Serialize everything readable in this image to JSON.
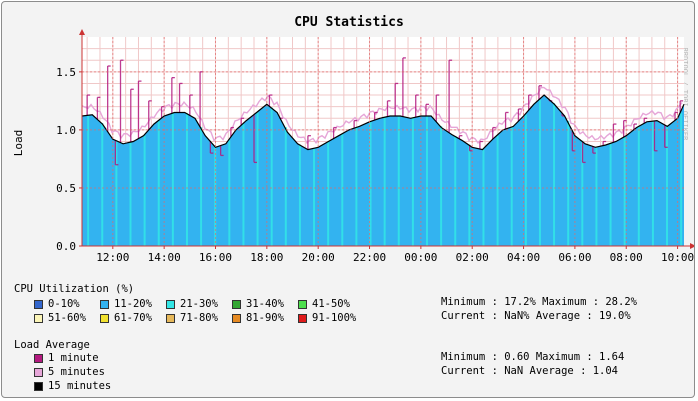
{
  "chart_data": {
    "type": "area",
    "title": "CPU Statistics",
    "ylabel": "Load",
    "ylim": [
      0,
      1.8
    ],
    "yticks": [
      "0.0",
      "0.5",
      "1.0",
      "1.5"
    ],
    "ytick_values": [
      0,
      0.5,
      1.0,
      1.5
    ],
    "x_range_hours": [
      10.8,
      34.25
    ],
    "xticks": [
      "12:00",
      "14:00",
      "16:00",
      "18:00",
      "20:00",
      "22:00",
      "00:00",
      "02:00",
      "04:00",
      "06:00",
      "08:00",
      "10:00"
    ],
    "xtick_values": [
      12,
      14,
      16,
      18,
      20,
      22,
      24,
      26,
      28,
      30,
      32,
      34
    ],
    "watermark": "RRDTOOL / TOBI OETIKER",
    "grid": true,
    "series_15min_hours": [
      10.8,
      11.2,
      11.6,
      12.0,
      12.4,
      12.8,
      13.2,
      13.6,
      14.0,
      14.4,
      14.8,
      15.2,
      15.6,
      16.0,
      16.4,
      16.8,
      17.2,
      17.6,
      18.0,
      18.4,
      18.8,
      19.2,
      19.6,
      20.0,
      20.4,
      20.8,
      21.2,
      21.6,
      22.0,
      22.4,
      22.8,
      23.2,
      23.6,
      24.0,
      24.4,
      24.8,
      25.2,
      25.6,
      26.0,
      26.4,
      26.8,
      27.2,
      27.6,
      28.0,
      28.4,
      28.8,
      29.2,
      29.6,
      30.0,
      30.4,
      30.8,
      31.2,
      31.6,
      32.0,
      32.4,
      32.8,
      33.2,
      33.6,
      34.0,
      34.25
    ],
    "series_15min_load": [
      1.12,
      1.13,
      1.05,
      0.92,
      0.88,
      0.9,
      0.95,
      1.05,
      1.12,
      1.15,
      1.15,
      1.1,
      0.95,
      0.85,
      0.88,
      1.0,
      1.08,
      1.15,
      1.22,
      1.15,
      0.98,
      0.88,
      0.83,
      0.85,
      0.9,
      0.95,
      1.0,
      1.03,
      1.07,
      1.1,
      1.12,
      1.12,
      1.1,
      1.12,
      1.12,
      1.02,
      0.96,
      0.91,
      0.85,
      0.83,
      0.92,
      1.0,
      1.03,
      1.12,
      1.22,
      1.3,
      1.22,
      1.12,
      0.95,
      0.88,
      0.85,
      0.87,
      0.9,
      0.95,
      1.02,
      1.07,
      1.08,
      1.03,
      1.1,
      1.22
    ],
    "spikes_1min": [
      [
        11.0,
        1.3
      ],
      [
        11.4,
        1.28
      ],
      [
        11.8,
        1.55
      ],
      [
        12.1,
        0.7
      ],
      [
        12.3,
        1.6
      ],
      [
        12.7,
        1.35
      ],
      [
        13.0,
        1.42
      ],
      [
        13.4,
        1.25
      ],
      [
        13.9,
        1.2
      ],
      [
        14.3,
        1.45
      ],
      [
        14.6,
        1.4
      ],
      [
        15.0,
        1.3
      ],
      [
        15.4,
        1.5
      ],
      [
        15.8,
        0.8
      ],
      [
        16.2,
        0.78
      ],
      [
        16.6,
        1.02
      ],
      [
        17.0,
        1.1
      ],
      [
        17.5,
        0.72
      ],
      [
        18.1,
        1.3
      ],
      [
        18.5,
        1.1
      ],
      [
        19.6,
        0.95
      ],
      [
        20.6,
        1.02
      ],
      [
        21.4,
        1.08
      ],
      [
        22.2,
        1.15
      ],
      [
        22.7,
        1.25
      ],
      [
        23.0,
        1.4
      ],
      [
        23.3,
        1.62
      ],
      [
        23.8,
        1.3
      ],
      [
        24.2,
        1.22
      ],
      [
        24.6,
        1.3
      ],
      [
        25.1,
        1.6
      ],
      [
        25.5,
        0.95
      ],
      [
        25.9,
        0.82
      ],
      [
        26.3,
        0.9
      ],
      [
        26.8,
        1.02
      ],
      [
        27.3,
        1.15
      ],
      [
        27.8,
        1.18
      ],
      [
        28.2,
        1.3
      ],
      [
        28.6,
        1.38
      ],
      [
        29.0,
        1.25
      ],
      [
        29.5,
        1.12
      ],
      [
        29.9,
        0.82
      ],
      [
        30.3,
        0.72
      ],
      [
        30.7,
        0.8
      ],
      [
        31.1,
        0.9
      ],
      [
        31.5,
        1.05
      ],
      [
        31.9,
        1.08
      ],
      [
        32.3,
        1.05
      ],
      [
        32.7,
        1.1
      ],
      [
        33.1,
        0.82
      ],
      [
        33.5,
        0.85
      ],
      [
        33.9,
        1.15
      ],
      [
        34.1,
        1.25
      ]
    ],
    "legend": {
      "cpu_title": "CPU Utilization (%)",
      "cpu_items": [
        {
          "label": "0-10%",
          "color": "#3366cc"
        },
        {
          "label": "11-20%",
          "color": "#33b3f0"
        },
        {
          "label": "21-30%",
          "color": "#33e6e6"
        },
        {
          "label": "31-40%",
          "color": "#33a633"
        },
        {
          "label": "41-50%",
          "color": "#4ddf4d"
        },
        {
          "label": "51-60%",
          "color": "#fbf5b8"
        },
        {
          "label": "61-70%",
          "color": "#f2e230"
        },
        {
          "label": "71-80%",
          "color": "#e6b85a"
        },
        {
          "label": "81-90%",
          "color": "#e68a22"
        },
        {
          "label": "91-100%",
          "color": "#e01b1b"
        }
      ],
      "load_title": "Load Average",
      "load_items": [
        {
          "label": "1 minute",
          "color": "#b3197f"
        },
        {
          "label": "5 minutes",
          "color": "#e6a6d8"
        },
        {
          "label": "15 minutes",
          "color": "#000000"
        }
      ]
    },
    "cpu_stats": {
      "line1": "Minimum : 17.2%   Maximum : 28.2%",
      "line2": "Current : NaN%   Average : 19.0%"
    },
    "load_stats": {
      "line1": "Minimum : 0.60   Maximum : 1.64",
      "line2": "Current : NaN    Average : 1.04"
    }
  }
}
